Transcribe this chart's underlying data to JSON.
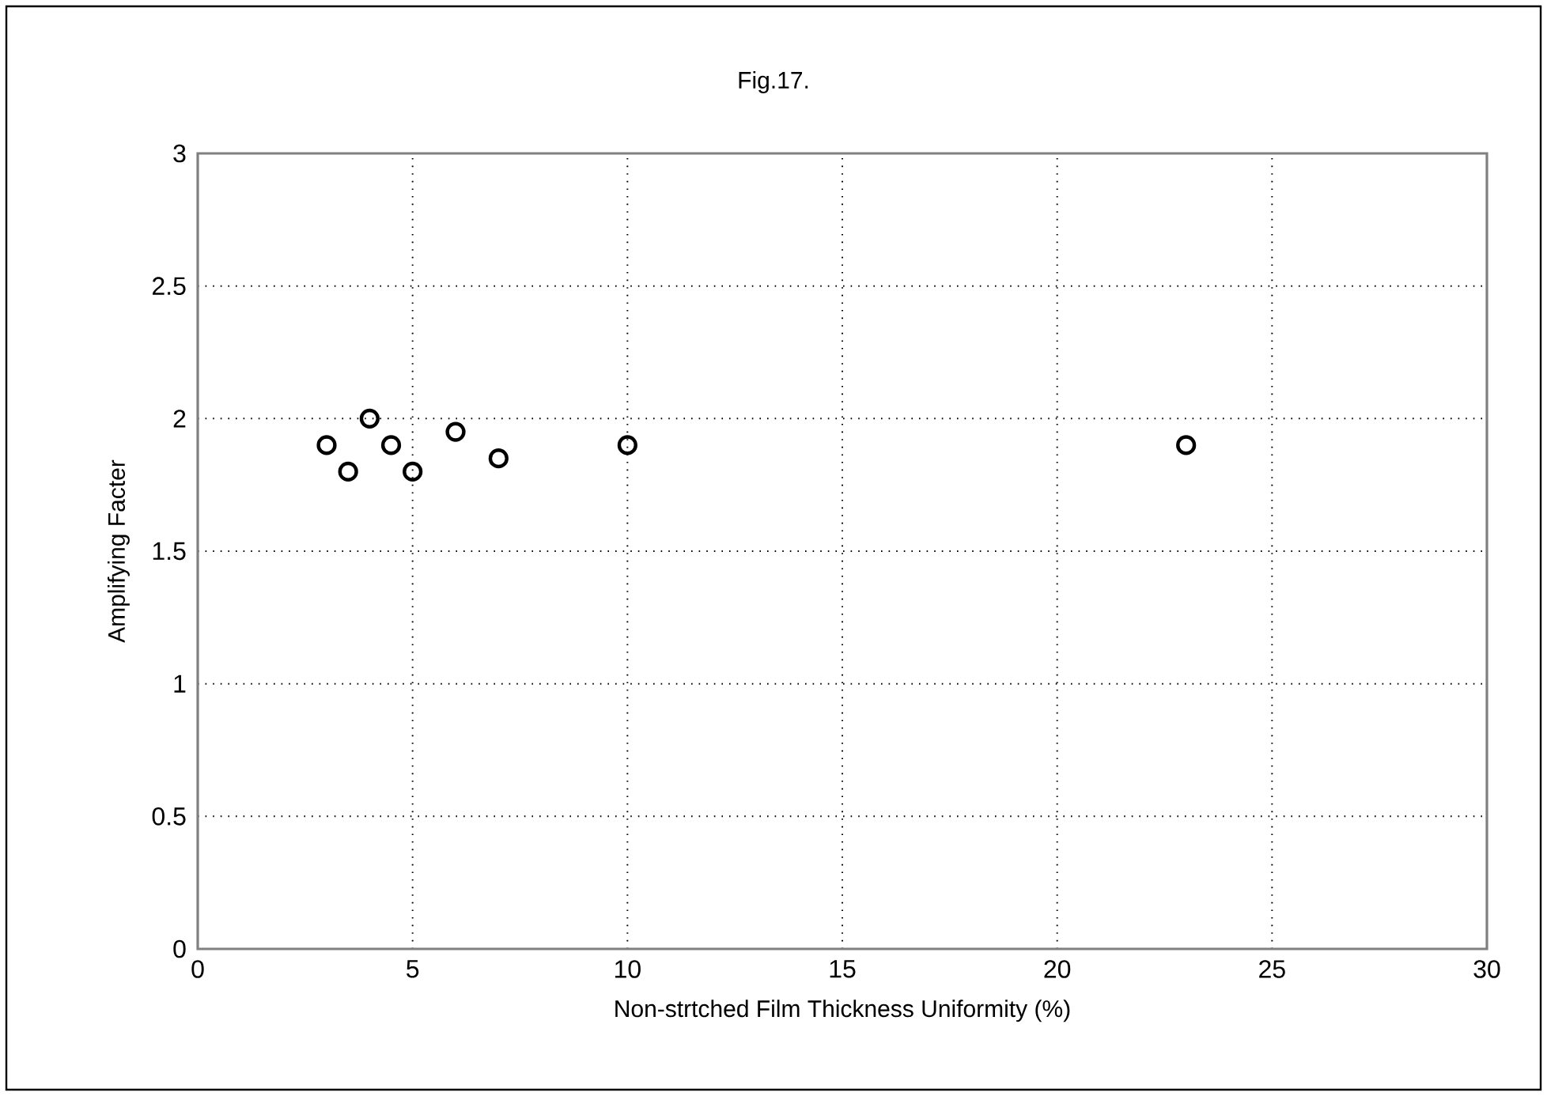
{
  "chart_data": {
    "type": "scatter",
    "title": "Fig.17.",
    "xlabel": "Non-strtched Film Thickness Uniformity (%)",
    "ylabel": "Amplifying Facter",
    "x": [
      3,
      3.5,
      4,
      4.5,
      5,
      6,
      7,
      10,
      23
    ],
    "series": [
      {
        "color": "#000000",
        "values": [
          1.9,
          1.8,
          2.0,
          1.9,
          1.8,
          1.95,
          1.85,
          1.9,
          1.9
        ]
      }
    ],
    "xlim": [
      0,
      30
    ],
    "ylim": [
      0,
      3
    ],
    "xticks": [
      0,
      5,
      10,
      15,
      20,
      25,
      30
    ],
    "yticks": [
      0,
      0.5,
      1,
      1.5,
      2,
      2.5,
      3
    ],
    "grid": true,
    "marker": "circle"
  }
}
